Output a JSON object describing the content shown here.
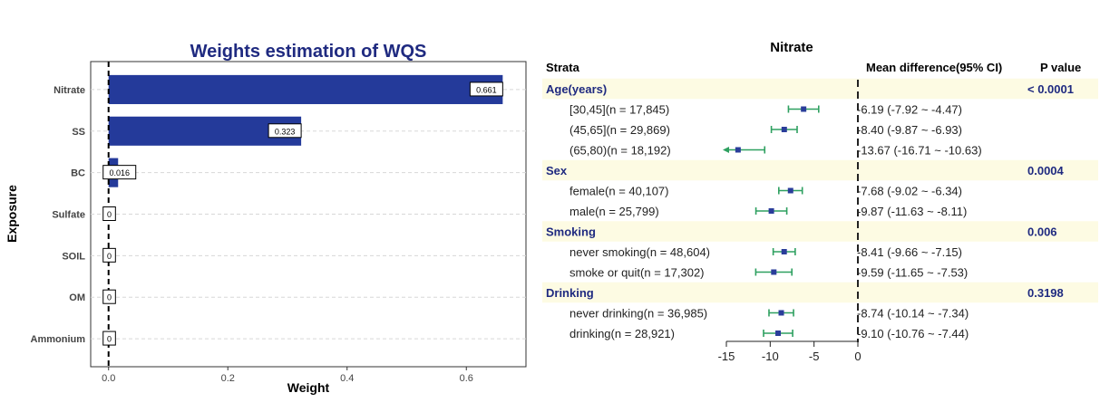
{
  "weights_chart": {
    "title": "Weights estimation of WQS",
    "xlabel": "Weight",
    "ylabel": "Exposure",
    "xticks": [
      "0.0",
      "0.2",
      "0.4",
      "0.6"
    ],
    "colors": {
      "title": "#1f2a80",
      "bar": "#243a9a"
    }
  },
  "forest_plot": {
    "title": "Nitrate",
    "header": {
      "strata": "Strata",
      "mean_diff": "Mean difference(95% CI)",
      "pvalue": "P value"
    },
    "axis_ticks": [
      "-15",
      "-10",
      "-5",
      "0"
    ],
    "colors": {
      "group_bg": "#fdfbe3",
      "group_text": "#1f2a80",
      "whisker": "#2ea060",
      "point": "#2a3d9a"
    }
  },
  "chart_data": [
    {
      "type": "bar",
      "orientation": "horizontal",
      "title": "Weights estimation of WQS",
      "xlabel": "Weight",
      "ylabel": "Exposure",
      "xlim": [
        -0.03,
        0.7
      ],
      "categories": [
        "Nitrate",
        "SS",
        "BC",
        "Sulfate",
        "SOIL",
        "OM",
        "Ammonium"
      ],
      "values": [
        0.661,
        0.323,
        0.016,
        0,
        0,
        0,
        0
      ],
      "labels": [
        "0.661",
        "0.323",
        "0.016",
        "0",
        "0",
        "0",
        "0"
      ],
      "reference_line": 0,
      "grid": "horizontal dashed"
    },
    {
      "type": "forest",
      "title": "Nitrate",
      "xlim": [
        -15,
        0
      ],
      "reference_line": 0,
      "groups": [
        {
          "name": "Age(years)",
          "pvalue": "< 0.0001",
          "rows": [
            {
              "label": "[30,45](n = 17,845)",
              "est": -6.19,
              "lo": -7.92,
              "hi": -4.47,
              "text": "-6.19 (-7.92 ~ -4.47)"
            },
            {
              "label": "(45,65](n = 29,869)",
              "est": -8.4,
              "lo": -9.87,
              "hi": -6.93,
              "text": "-8.40 (-9.87 ~ -6.93)"
            },
            {
              "label": "(65,80)(n = 18,192)",
              "est": -13.67,
              "lo": -16.71,
              "hi": -10.63,
              "text": "-13.67 (-16.71 ~ -10.63)"
            }
          ]
        },
        {
          "name": "Sex",
          "pvalue": "0.0004",
          "rows": [
            {
              "label": "female(n = 40,107)",
              "est": -7.68,
              "lo": -9.02,
              "hi": -6.34,
              "text": "-7.68 (-9.02 ~ -6.34)"
            },
            {
              "label": "male(n = 25,799)",
              "est": -9.87,
              "lo": -11.63,
              "hi": -8.11,
              "text": "-9.87 (-11.63 ~ -8.11)"
            }
          ]
        },
        {
          "name": "Smoking",
          "pvalue": "0.006",
          "rows": [
            {
              "label": "never smoking(n = 48,604)",
              "est": -8.41,
              "lo": -9.66,
              "hi": -7.15,
              "text": "-8.41 (-9.66 ~ -7.15)"
            },
            {
              "label": "smoke or quit(n = 17,302)",
              "est": -9.59,
              "lo": -11.65,
              "hi": -7.53,
              "text": "-9.59 (-11.65 ~ -7.53)"
            }
          ]
        },
        {
          "name": "Drinking",
          "pvalue": "0.3198",
          "rows": [
            {
              "label": "never drinking(n = 36,985)",
              "est": -8.74,
              "lo": -10.14,
              "hi": -7.34,
              "text": "-8.74 (-10.14 ~ -7.34)"
            },
            {
              "label": "drinking(n = 28,921)",
              "est": -9.1,
              "lo": -10.76,
              "hi": -7.44,
              "text": "-9.10 (-10.76 ~ -7.44)"
            }
          ]
        }
      ]
    }
  ]
}
